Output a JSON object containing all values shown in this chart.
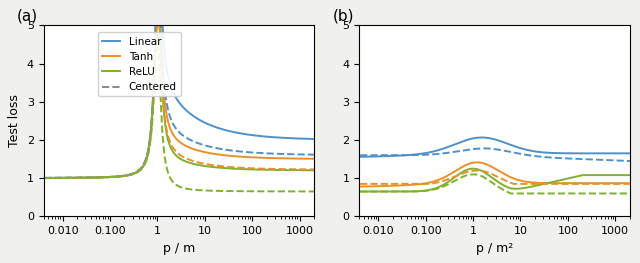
{
  "panel_a_label": "(a)",
  "panel_b_label": "(b)",
  "xlabel_a": "p / m",
  "xlabel_b": "p / m²",
  "ylabel": "Test loss",
  "ylim": [
    0,
    5
  ],
  "yticks": [
    0,
    1,
    2,
    3,
    4,
    5
  ],
  "xlim_a": [
    0.004,
    2000
  ],
  "xlim_b": [
    0.004,
    2000
  ],
  "colors": {
    "Linear": "#5090c8",
    "Tanh": "#e8902a",
    "ReLU": "#80b030"
  },
  "legend_labels": [
    "Linear",
    "Tanh",
    "ReLU",
    "Centered"
  ],
  "background_color": "#ffffff",
  "fig_background": "#f0f0ec",
  "lw": 1.4
}
